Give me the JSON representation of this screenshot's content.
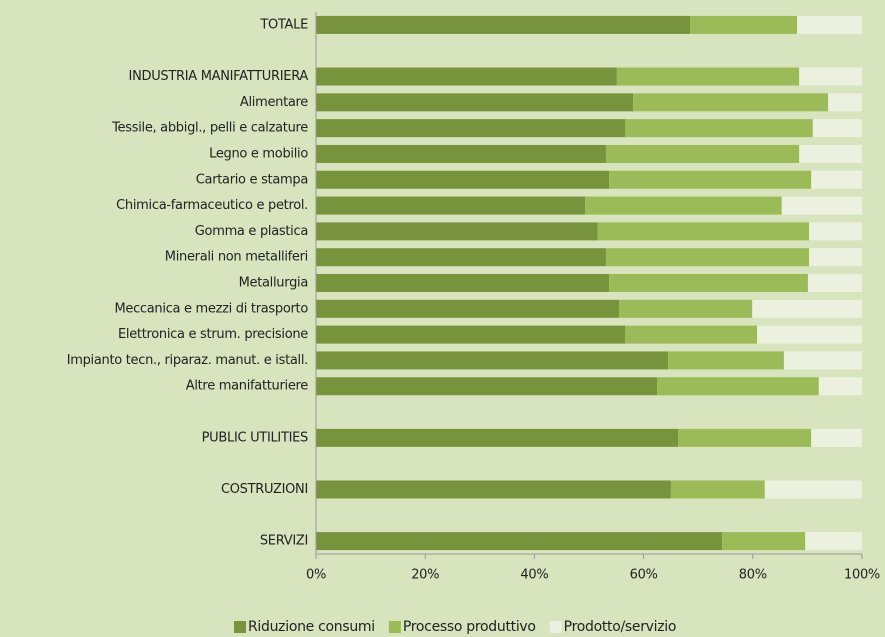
{
  "chart_data": {
    "type": "bar",
    "orientation": "horizontal",
    "stacked": true,
    "categories": [
      "TOTALE",
      null,
      "INDUSTRIA MANIFATTURIERA",
      "Alimentare",
      "Tessile, abbigl., pelli e calzature",
      "Legno e mobilio",
      "Cartario e stampa",
      "Chimica-farmaceutico e petrol.",
      "Gomma e plastica",
      "Minerali non metalliferi",
      "Metallurgia",
      "Meccanica e mezzi di trasporto",
      "Elettronica e strum. precisione",
      "Impianto tecn., riparaz. manut. e istall.",
      "Altre manifatturiere",
      null,
      "PUBLIC UTILITIES",
      null,
      "COSTRUZIONI",
      null,
      "SERVIZI"
    ],
    "series": [
      {
        "name": "Riduzione consumi",
        "color": "#77933c",
        "values": [
          68.5,
          null,
          55.1,
          58.1,
          56.6,
          53.1,
          53.7,
          49.3,
          51.6,
          53.1,
          53.7,
          55.5,
          56.6,
          64.5,
          62.5,
          null,
          66.3,
          null,
          65.0,
          null,
          74.4
        ]
      },
      {
        "name": "Processo produttivo",
        "color": "#9bbb59",
        "values": [
          19.6,
          null,
          33.4,
          35.7,
          34.4,
          35.4,
          37.0,
          36.0,
          38.7,
          37.2,
          36.4,
          24.4,
          24.2,
          21.2,
          29.6,
          null,
          24.4,
          null,
          17.2,
          null,
          15.2
        ]
      },
      {
        "name": "Prodotto/servizio",
        "color": "#ebf1de",
        "values": [
          11.9,
          null,
          11.5,
          6.2,
          9.0,
          11.5,
          9.3,
          14.7,
          9.7,
          9.7,
          9.9,
          20.1,
          19.2,
          14.3,
          7.9,
          null,
          9.3,
          null,
          17.8,
          null,
          10.4
        ]
      }
    ],
    "xlim": [
      0,
      100
    ],
    "xticks": [
      {
        "value": 0,
        "label": "0%"
      },
      {
        "value": 20,
        "label": "20%"
      },
      {
        "value": 40,
        "label": "40%"
      },
      {
        "value": 60,
        "label": "60%"
      },
      {
        "value": 80,
        "label": "80%"
      },
      {
        "value": 100,
        "label": "100%"
      }
    ],
    "legend": "bottom"
  }
}
